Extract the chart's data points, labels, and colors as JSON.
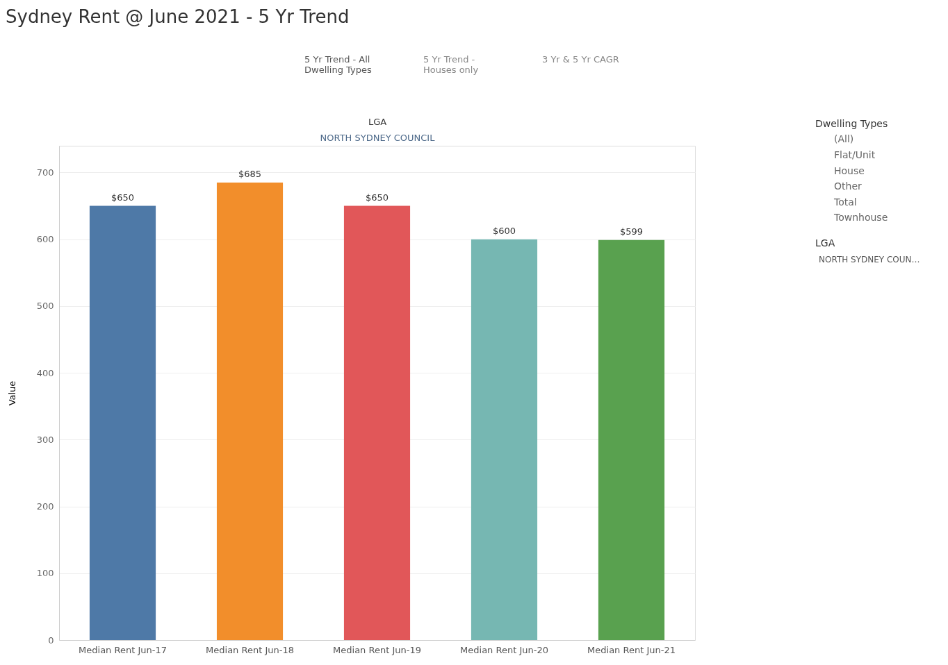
{
  "chart_data": {
    "type": "bar",
    "title": "Sydney Rent @ June 2021 - 5 Yr Trend",
    "ylabel": "Value",
    "categories": [
      "Median Rent Jun-17",
      "Median Rent Jun-18",
      "Median Rent Jun-19",
      "Median Rent Jun-20",
      "Median Rent Jun-21"
    ],
    "values": [
      650,
      685,
      650,
      600,
      599
    ],
    "colors": [
      "#4e79a7",
      "#f28e2b",
      "#e15759",
      "#76b7b2",
      "#59a14f"
    ],
    "value_labels": [
      "$650",
      "$685",
      "$650",
      "$600",
      "$599"
    ],
    "ylim": [
      0,
      740
    ],
    "yticks": [
      0,
      100,
      200,
      300,
      400,
      500,
      600,
      700
    ],
    "grid": "y",
    "legend": false,
    "annotations": [
      "LGA",
      "NORTH SYDNEY COUNCIL",
      "5 Yr Trend - All Dwelling Types",
      "5 Yr Trend - Houses only",
      "3 Yr & 5 Yr CAGR",
      "Dwelling Types",
      "(All)",
      "Flat/Unit",
      "House",
      "Other",
      "Total",
      "Townhouse",
      "LGA",
      "NORTH SYDNEY COUN…"
    ]
  }
}
